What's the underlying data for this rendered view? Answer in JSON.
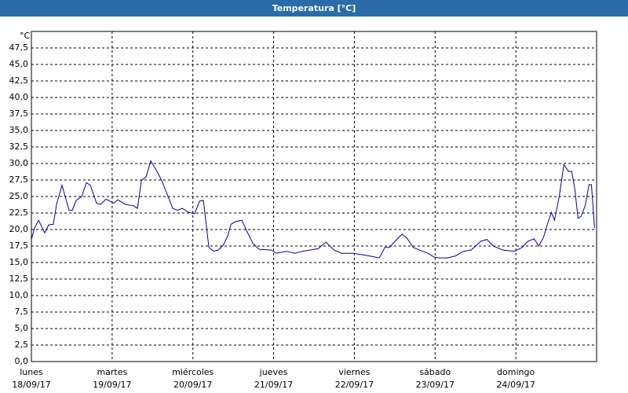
{
  "chart_data": {
    "type": "line",
    "title": "Temperatura [°C]",
    "y_label": "°C",
    "xlim": [
      0,
      7
    ],
    "ylim": [
      0,
      50
    ],
    "grid": true,
    "xticks": [
      {
        "value": 0,
        "label": [
          "lunes",
          "18/09/17"
        ]
      },
      {
        "value": 1,
        "label": [
          "martes",
          "19/09/17"
        ]
      },
      {
        "value": 2,
        "label": [
          "miércoles",
          "20/09/17"
        ]
      },
      {
        "value": 3,
        "label": [
          "jueves",
          "21/09/17"
        ]
      },
      {
        "value": 4,
        "label": [
          "viernes",
          "22/09/17"
        ]
      },
      {
        "value": 5,
        "label": [
          "sábado",
          "23/09/17"
        ]
      },
      {
        "value": 6,
        "label": [
          "domingo",
          "24/09/17"
        ]
      }
    ],
    "yticks": [
      {
        "value": 0,
        "label": "0,0"
      },
      {
        "value": 2.5,
        "label": "2,5"
      },
      {
        "value": 5,
        "label": "5,0"
      },
      {
        "value": 7.5,
        "label": "7,5"
      },
      {
        "value": 10,
        "label": "10,0"
      },
      {
        "value": 12.5,
        "label": "12,5"
      },
      {
        "value": 15,
        "label": "15,0"
      },
      {
        "value": 17.5,
        "label": "17,5"
      },
      {
        "value": 20,
        "label": "20,0"
      },
      {
        "value": 22.5,
        "label": "22,5"
      },
      {
        "value": 25,
        "label": "25,0"
      },
      {
        "value": 27.5,
        "label": "27,5"
      },
      {
        "value": 30,
        "label": "30,0"
      },
      {
        "value": 32.5,
        "label": "32,5"
      },
      {
        "value": 35,
        "label": "35,0"
      },
      {
        "value": 37.5,
        "label": "37,5"
      },
      {
        "value": 40,
        "label": "40,0"
      },
      {
        "value": 42.5,
        "label": "42,5"
      },
      {
        "value": 45,
        "label": "45,0"
      },
      {
        "value": 47.5,
        "label": "47,5"
      }
    ],
    "series": [
      {
        "color": "#0000a0",
        "x": [
          0,
          0.039,
          0.088,
          0.165,
          0.214,
          0.272,
          0.311,
          0.379,
          0.467,
          0.506,
          0.554,
          0.623,
          0.681,
          0.73,
          0.807,
          0.856,
          0.924,
          1.021,
          1.07,
          1.167,
          1.265,
          1.313,
          1.362,
          1.42,
          1.479,
          1.556,
          1.615,
          1.673,
          1.751,
          1.809,
          1.868,
          1.946,
          2.023,
          2.082,
          2.13,
          2.198,
          2.257,
          2.315,
          2.374,
          2.432,
          2.471,
          2.529,
          2.607,
          2.675,
          2.743,
          2.821,
          2.967,
          3.035,
          3.161,
          3.259,
          3.356,
          3.453,
          3.551,
          3.648,
          3.745,
          3.842,
          3.988,
          4.086,
          4.183,
          4.309,
          4.377,
          4.436,
          4.494,
          4.591,
          4.65,
          4.728,
          4.844,
          4.912,
          4.99,
          5.058,
          5.156,
          5.253,
          5.35,
          5.447,
          5.564,
          5.642,
          5.72,
          5.837,
          5.982,
          6.08,
          6.148,
          6.226,
          6.284,
          6.342,
          6.401,
          6.44,
          6.479,
          6.537,
          6.595,
          6.654,
          6.693,
          6.732,
          6.77,
          6.809,
          6.858,
          6.907,
          6.936,
          6.975
        ],
        "values": [
          18.5,
          20.2,
          21.4,
          19.5,
          20.7,
          20.8,
          23.8,
          26.7,
          22.9,
          22.9,
          24.4,
          25.0,
          27.1,
          26.7,
          24.0,
          23.8,
          24.6,
          24.0,
          24.5,
          23.8,
          23.6,
          23.2,
          27.4,
          28.0,
          30.4,
          28.8,
          27.4,
          25.6,
          23.2,
          22.9,
          23.2,
          22.6,
          22.4,
          24.3,
          24.4,
          17.3,
          16.7,
          16.9,
          17.6,
          19.0,
          20.8,
          21.2,
          21.4,
          19.6,
          17.9,
          17.0,
          16.9,
          16.4,
          16.7,
          16.4,
          16.7,
          16.9,
          17.1,
          18.1,
          16.9,
          16.4,
          16.4,
          16.2,
          16.0,
          15.7,
          17.3,
          17.3,
          18.1,
          19.3,
          18.7,
          17.3,
          16.7,
          16.4,
          15.8,
          15.7,
          15.7,
          16.0,
          16.7,
          16.9,
          18.2,
          18.5,
          17.5,
          16.9,
          16.7,
          17.3,
          18.2,
          18.6,
          17.5,
          18.8,
          21.2,
          22.6,
          21.4,
          25.0,
          29.8,
          28.8,
          28.8,
          26.0,
          21.7,
          22.0,
          23.6,
          26.8,
          26.8,
          20.2
        ]
      }
    ]
  }
}
